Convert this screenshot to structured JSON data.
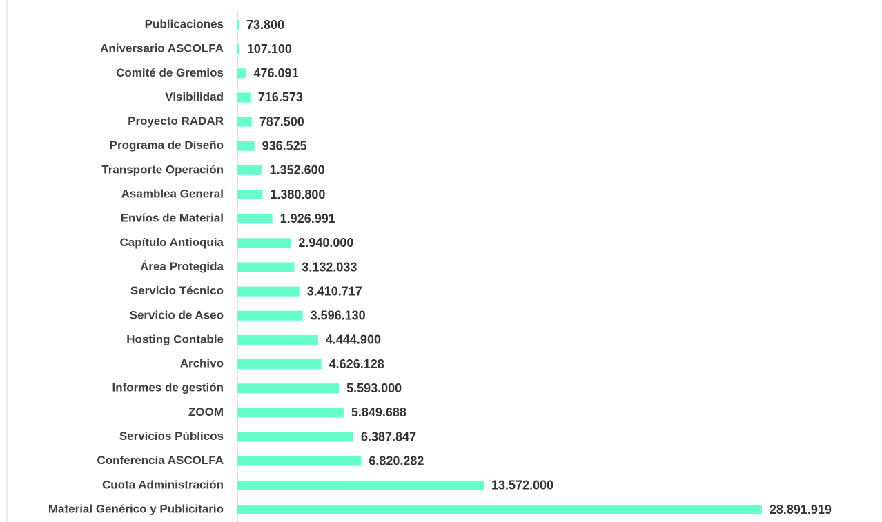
{
  "chart_data": {
    "type": "barh",
    "categories": [
      "Publicaciones",
      "Aniversario ASCOLFA",
      "Comité de Gremios",
      "Visibilidad",
      "Proyecto RADAR",
      "Programa de Diseño",
      "Transporte Operación",
      "Asamblea General",
      "Envíos de Material",
      "Capítulo Antioquia",
      "Área Protegida",
      "Servicio Técnico",
      "Servicio de Aseo",
      "Hosting Contable",
      "Archivo",
      "Informes de gestión",
      "ZOOM",
      "Servicios Públicos",
      "Conferencia ASCOLFA",
      "Cuota Administración",
      "Material Genérico y Publicitario"
    ],
    "values": [
      73800,
      107100,
      476091,
      716573,
      787500,
      936525,
      1352600,
      1380800,
      1926991,
      2940000,
      3132033,
      3410717,
      3596130,
      4444900,
      4626128,
      5593000,
      5849688,
      6387847,
      6820282,
      13572000,
      28891919
    ],
    "value_labels": [
      "73.800",
      "107.100",
      "476.091",
      "716.573",
      "787.500",
      "936.525",
      "1.352.600",
      "1.380.800",
      "1.926.991",
      "2.940.000",
      "3.132.033",
      "3.410.717",
      "3.596.130",
      "4.444.900",
      "4.626.128",
      "5.593.000",
      "5.849.688",
      "6.387.847",
      "6.820.282",
      "13.572.000",
      "28.891.919"
    ],
    "color": "#66ffcc",
    "xlim": [
      0,
      30000000
    ]
  }
}
